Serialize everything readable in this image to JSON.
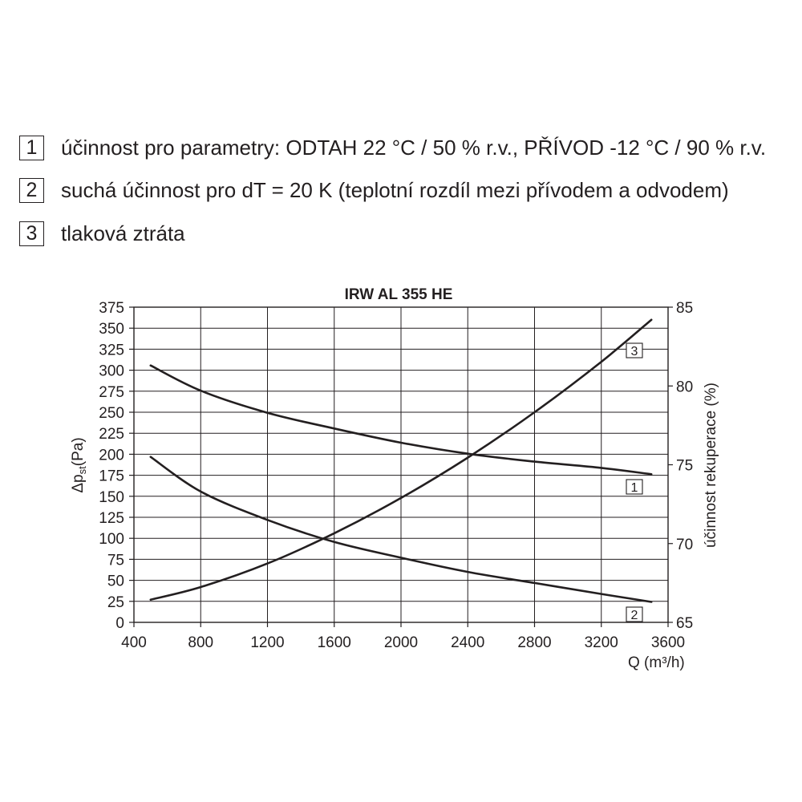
{
  "legend": [
    {
      "number": "1",
      "text": "účinnost pro parametry: ODTAH 22 °C / 50 % r.v., PŘÍVOD -12 °C / 90 % r.v."
    },
    {
      "number": "2",
      "text": "suchá účinnost pro dT = 20 K (teplotní rozdíl mezi přívodem a odvodem)"
    },
    {
      "number": "3",
      "text": "tlaková ztráta"
    }
  ],
  "colors": {
    "ink": "#231f20",
    "background": "#ffffff"
  },
  "chart_data": {
    "type": "line",
    "title": "IRW AL 355 HE",
    "xlabel": "Q (m³/h)",
    "ylabel": {
      "symbol": "Δp",
      "subscript": "st",
      "unit": "(Pa)"
    },
    "y2label": "účinnost rekuperace (%)",
    "xlim": [
      400,
      3600
    ],
    "xticks": [
      400,
      800,
      1200,
      1600,
      2000,
      2400,
      2800,
      3200,
      3600
    ],
    "ylim": [
      0,
      375
    ],
    "yticks": [
      0,
      25,
      50,
      75,
      100,
      125,
      150,
      175,
      200,
      225,
      250,
      275,
      300,
      325,
      350,
      375
    ],
    "y2lim": [
      65,
      85
    ],
    "y2ticks": [
      65,
      70,
      75,
      80,
      85
    ],
    "grid": true,
    "series": [
      {
        "name": "1",
        "y_axis": "right",
        "x": [
          500,
          800,
          1200,
          1600,
          2000,
          2400,
          2800,
          3200,
          3500
        ],
        "y": [
          81.3,
          79.7,
          78.3,
          77.3,
          76.4,
          75.7,
          75.2,
          74.8,
          74.4
        ]
      },
      {
        "name": "2",
        "y_axis": "right",
        "x": [
          500,
          800,
          1200,
          1600,
          2000,
          2400,
          2800,
          3200,
          3500
        ],
        "y": [
          75.5,
          73.3,
          71.5,
          70.1,
          69.1,
          68.2,
          67.5,
          66.8,
          66.3
        ]
      },
      {
        "name": "3",
        "y_axis": "left",
        "x": [
          500,
          800,
          1200,
          1600,
          2000,
          2400,
          2800,
          3200,
          3500
        ],
        "y": [
          27,
          42,
          70,
          106,
          148,
          196,
          250,
          310,
          360
        ]
      }
    ]
  }
}
